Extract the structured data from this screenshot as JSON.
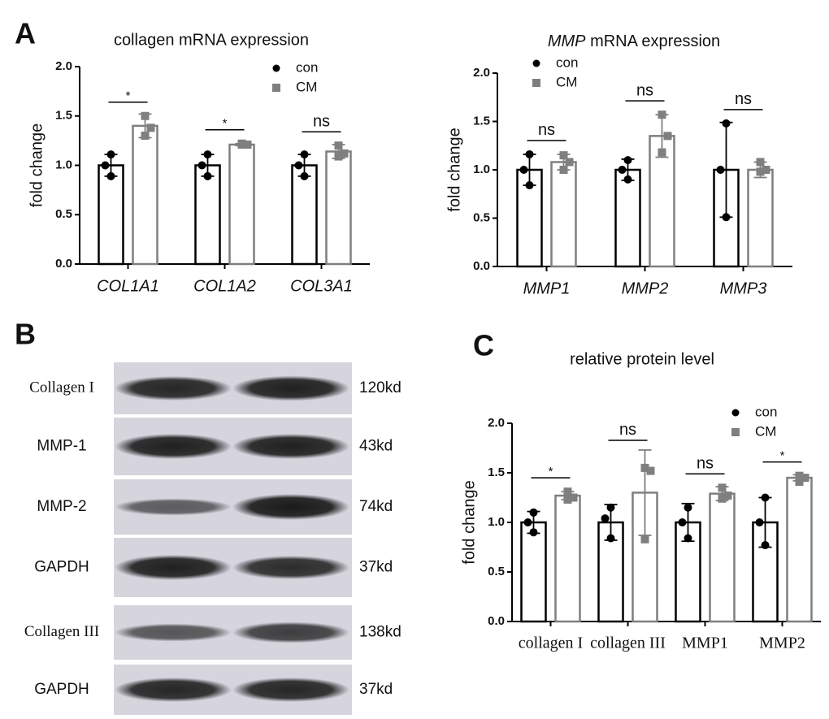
{
  "panel_labels": [
    "A",
    "B",
    "C"
  ],
  "chart_data": [
    {
      "type": "bar",
      "title": "collagen mRNA expression",
      "y_label": "fold change",
      "italic_categories": true,
      "categories": [
        "COL1A1",
        "COL1A2",
        "COL3A1"
      ],
      "ylim": [
        0,
        2
      ],
      "yticks": [
        {
          "value": 0,
          "label": "0.0"
        },
        {
          "value": 0.5,
          "label": "0.5"
        },
        {
          "value": 1,
          "label": "1.0"
        },
        {
          "value": 1.5,
          "label": "1.5"
        },
        {
          "value": 2,
          "label": "2.0"
        }
      ],
      "significance": [
        "*",
        "*",
        "ns"
      ],
      "series": [
        {
          "name": "con",
          "color": "#000000",
          "marker": "circle",
          "values": [
            1.0,
            1.0,
            1.0
          ],
          "errors": [
            0.11,
            0.11,
            0.11
          ],
          "points": [
            [
              1.11,
              1.0,
              0.89
            ],
            [
              1.11,
              1.0,
              0.89
            ],
            [
              1.11,
              1.0,
              0.89
            ]
          ]
        },
        {
          "name": "CM",
          "color": "#7f7f7f",
          "marker": "square",
          "values": [
            1.4,
            1.21,
            1.14
          ],
          "errors": [
            0.12,
            0.01,
            0.07
          ],
          "points": [
            [
              1.5,
              1.38,
              1.3
            ],
            [
              1.22,
              1.21,
              1.21
            ],
            [
              1.2,
              1.12,
              1.09
            ]
          ]
        }
      ]
    },
    {
      "type": "bar",
      "title_italic": "MMP",
      "title": " mRNA expression",
      "y_label": "fold change",
      "italic_categories": true,
      "categories": [
        "MMP1",
        "MMP2",
        "MMP3"
      ],
      "ylim": [
        0,
        2
      ],
      "yticks": [
        {
          "value": 0,
          "label": "0.0"
        },
        {
          "value": 0.5,
          "label": "0.5"
        },
        {
          "value": 1,
          "label": "1.0"
        },
        {
          "value": 1.5,
          "label": "1.5"
        },
        {
          "value": 2,
          "label": "2.0"
        }
      ],
      "significance": [
        "ns",
        "ns",
        "ns"
      ],
      "series": [
        {
          "name": "con",
          "color": "#000000",
          "marker": "circle",
          "values": [
            1.0,
            1.0,
            1.0
          ],
          "errors": [
            0.16,
            0.11,
            0.49
          ],
          "points": [
            [
              1.16,
              1.0,
              0.84
            ],
            [
              1.1,
              1.0,
              0.9
            ],
            [
              1.48,
              1.0,
              0.51
            ]
          ]
        },
        {
          "name": "CM",
          "color": "#7f7f7f",
          "marker": "square",
          "values": [
            1.08,
            1.35,
            1.0
          ],
          "errors": [
            0.08,
            0.22,
            0.08
          ],
          "points": [
            [
              1.15,
              1.08,
              1.0
            ],
            [
              1.57,
              1.35,
              1.18
            ],
            [
              1.08,
              1.0,
              0.98
            ]
          ]
        }
      ]
    },
    {
      "type": "bar",
      "title": "relative protein level",
      "y_label": "fold change",
      "italic_categories": false,
      "categories": [
        "collagen I",
        "collagen III",
        "MMP1",
        "MMP2"
      ],
      "ylim": [
        0,
        2
      ],
      "yticks": [
        {
          "value": 0,
          "label": "0.0"
        },
        {
          "value": 0.5,
          "label": "0.5"
        },
        {
          "value": 1,
          "label": "1.0"
        },
        {
          "value": 1.5,
          "label": "1.5"
        },
        {
          "value": 2,
          "label": "2.0"
        }
      ],
      "significance": [
        "*",
        "ns",
        "ns",
        "*"
      ],
      "series": [
        {
          "name": "con",
          "color": "#000000",
          "marker": "circle",
          "values": [
            1.0,
            1.0,
            1.0,
            1.0
          ],
          "errors": [
            0.11,
            0.18,
            0.19,
            0.25
          ],
          "points": [
            [
              1.1,
              1.0,
              0.9
            ],
            [
              1.15,
              1.04,
              0.84
            ],
            [
              1.15,
              1.0,
              0.84
            ],
            [
              1.25,
              1.0,
              0.77
            ]
          ]
        },
        {
          "name": "CM",
          "color": "#7f7f7f",
          "marker": "square",
          "values": [
            1.27,
            1.3,
            1.29,
            1.45
          ],
          "errors": [
            0.04,
            0.43,
            0.07,
            0.03
          ],
          "points": [
            [
              1.31,
              1.25,
              1.23
            ],
            [
              1.55,
              1.52,
              0.83
            ],
            [
              1.35,
              1.27,
              1.24
            ],
            [
              1.47,
              1.45,
              1.41
            ]
          ]
        }
      ]
    }
  ],
  "blot": {
    "rows": [
      {
        "label": "Collagen I",
        "size": "120kd"
      },
      {
        "label": "MMP-1",
        "size": "43kd"
      },
      {
        "label": "MMP-2",
        "size": "74kd"
      },
      {
        "label": "GAPDH",
        "size": "37kd"
      },
      {
        "label": "Collagen III",
        "size": "138kd"
      },
      {
        "label": "GAPDH",
        "size": "37kd"
      }
    ]
  }
}
